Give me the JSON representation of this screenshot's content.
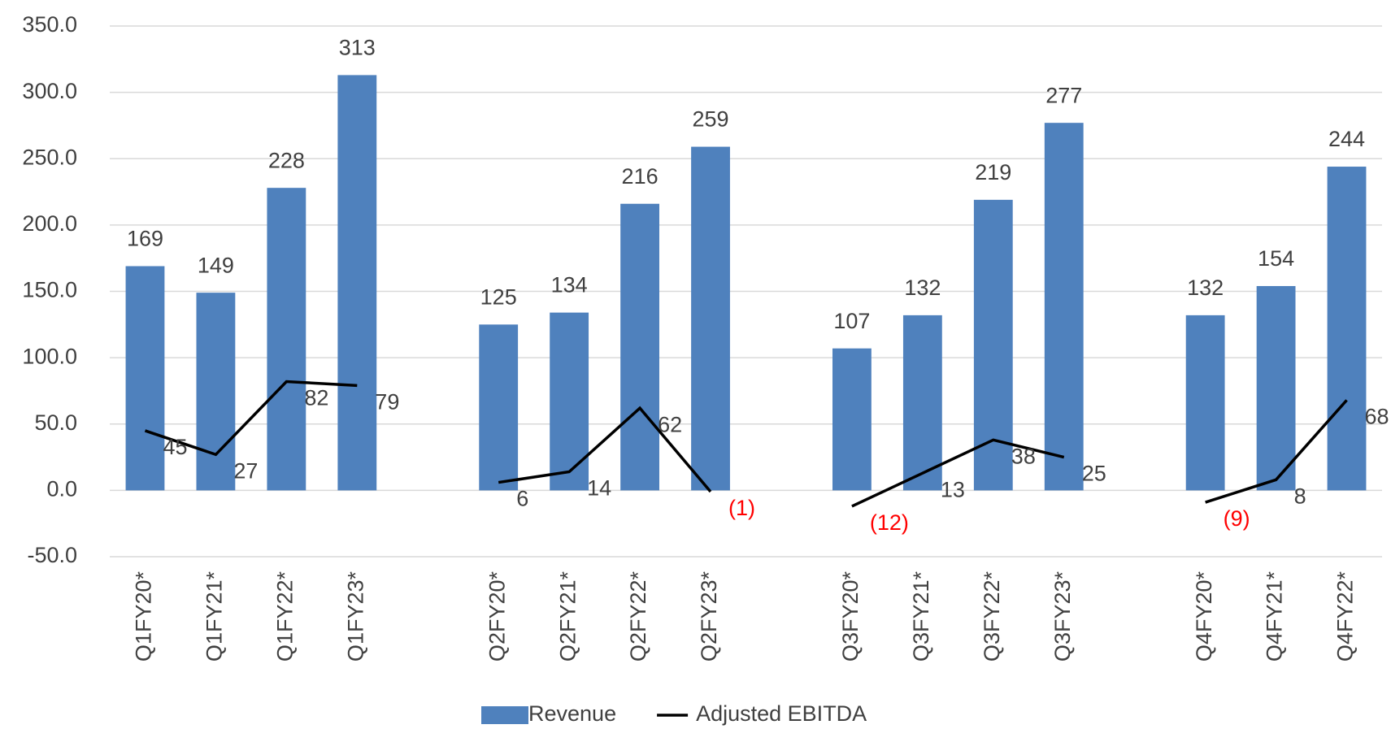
{
  "chart_data": {
    "type": "bar-line",
    "categories": [
      "Q1FY20*",
      "Q1FY21*",
      "Q1FY22*",
      "Q1FY23*",
      null,
      "Q2FY20*",
      "Q2FY21*",
      "Q2FY22*",
      "Q2FY23*",
      null,
      "Q3FY20*",
      "Q3FY21*",
      "Q3FY22*",
      "Q3FY23*",
      null,
      "Q4FY20*",
      "Q4FY21*",
      "Q4FY22*"
    ],
    "series": [
      {
        "name": "Revenue",
        "type": "bar",
        "color": "#4f81bd",
        "values": [
          169,
          149,
          228,
          313,
          null,
          125,
          134,
          216,
          259,
          null,
          107,
          132,
          219,
          277,
          null,
          132,
          154,
          244
        ]
      },
      {
        "name": "Adjusted EBITDA",
        "type": "line",
        "color": "#000000",
        "values": [
          45,
          27,
          82,
          79,
          null,
          6,
          14,
          62,
          -1,
          null,
          -12,
          13,
          38,
          25,
          null,
          -9,
          8,
          68
        ],
        "value_labels": [
          "45",
          "27",
          "82",
          "79",
          null,
          "6",
          "14",
          "62",
          "(1)",
          null,
          "(12)",
          "13",
          "38",
          "25",
          null,
          "(9)",
          "8",
          "68"
        ]
      }
    ],
    "ylim": [
      -50,
      350
    ],
    "yticks": [
      {
        "value": -50,
        "label": "-50.0"
      },
      {
        "value": 0,
        "label": "0.0"
      },
      {
        "value": 50,
        "label": "50.0"
      },
      {
        "value": 100,
        "label": "100.0"
      },
      {
        "value": 150,
        "label": "150.0"
      },
      {
        "value": 200,
        "label": "200.0"
      },
      {
        "value": 250,
        "label": "250.0"
      },
      {
        "value": 300,
        "label": "300.0"
      },
      {
        "value": 350,
        "label": "350.0"
      }
    ],
    "grid": true,
    "legend": "bottom"
  }
}
